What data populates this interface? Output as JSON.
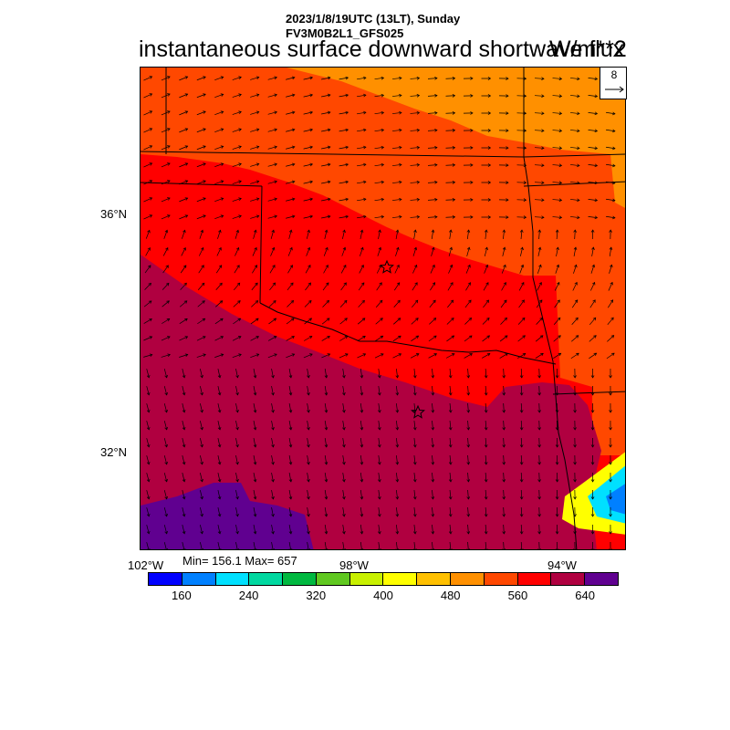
{
  "header": {
    "line1": "2023/1/8/19UTC (13LT), Sunday",
    "line2": "FV3M0B2L1_GFS025",
    "title": "instantaneous surface downward shortwave flux",
    "units": "W/m**2"
  },
  "vector_reference": "8",
  "map": {
    "lat_labels": [
      "36°N",
      "32°N"
    ],
    "lon_labels": [
      "102°W",
      "98°W",
      "94°W"
    ],
    "station_markers": 2
  },
  "stats": {
    "text": "Min= 156.1 Max= 657"
  },
  "colorbar": {
    "colors": [
      "#0000ff",
      "#0080ff",
      "#00e0ff",
      "#00d8a0",
      "#00b840",
      "#60c820",
      "#c8f000",
      "#ffff00",
      "#ffc000",
      "#ff9000",
      "#ff4800",
      "#ff0000",
      "#b00040",
      "#600090"
    ],
    "labels": [
      "160",
      "240",
      "320",
      "400",
      "480",
      "560",
      "640"
    ]
  }
}
